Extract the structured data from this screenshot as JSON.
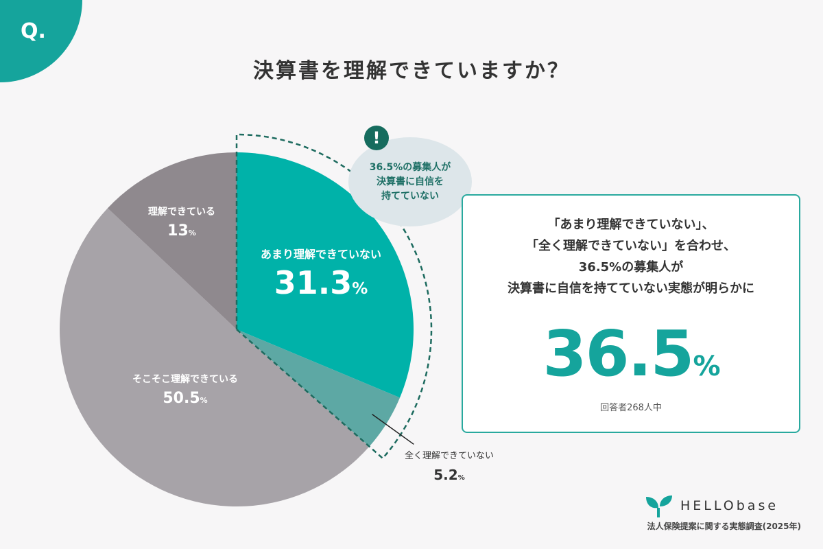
{
  "question_mark": "Q.",
  "title": "決算書を理解できていますか？",
  "chart_data": {
    "type": "pie",
    "title": "決算書を理解できていますか？",
    "start": "top",
    "direction": "clockwise",
    "slices": [
      {
        "label": "あまり理解できていない",
        "value": 31.3,
        "display": "31.3",
        "color": "#00b2a9"
      },
      {
        "label": "全く理解できていない",
        "value": 5.2,
        "display": "5.2",
        "color": "#5da8a4"
      },
      {
        "label": "そこそこ理解できている",
        "value": 50.5,
        "display": "50.5",
        "color": "#a7a3a8"
      },
      {
        "label": "理解できている",
        "value": 13,
        "display": "13",
        "color": "#8f898e"
      }
    ],
    "unit": "%",
    "highlight_outline_color": "#1d6b5f"
  },
  "callout": {
    "icon": "exclamation-icon",
    "icon_glyph": "!",
    "text": "36.5%の募集人が\n決算書に自信を\n持てていない"
  },
  "summary": {
    "text": "「あまり理解できていない」、\n「全く理解できていない」を合わせ、\n36.5%の募集人が\n決算書に自信を持てていない実態が明らかに",
    "value": "36.5",
    "unit": "%",
    "respondents": "回答者268人中",
    "accent": "#15a49c"
  },
  "logo": {
    "text": "HELLObase",
    "icon": "sprout-icon"
  },
  "survey_name": "法人保険提案に関する実態調査(2025年)"
}
